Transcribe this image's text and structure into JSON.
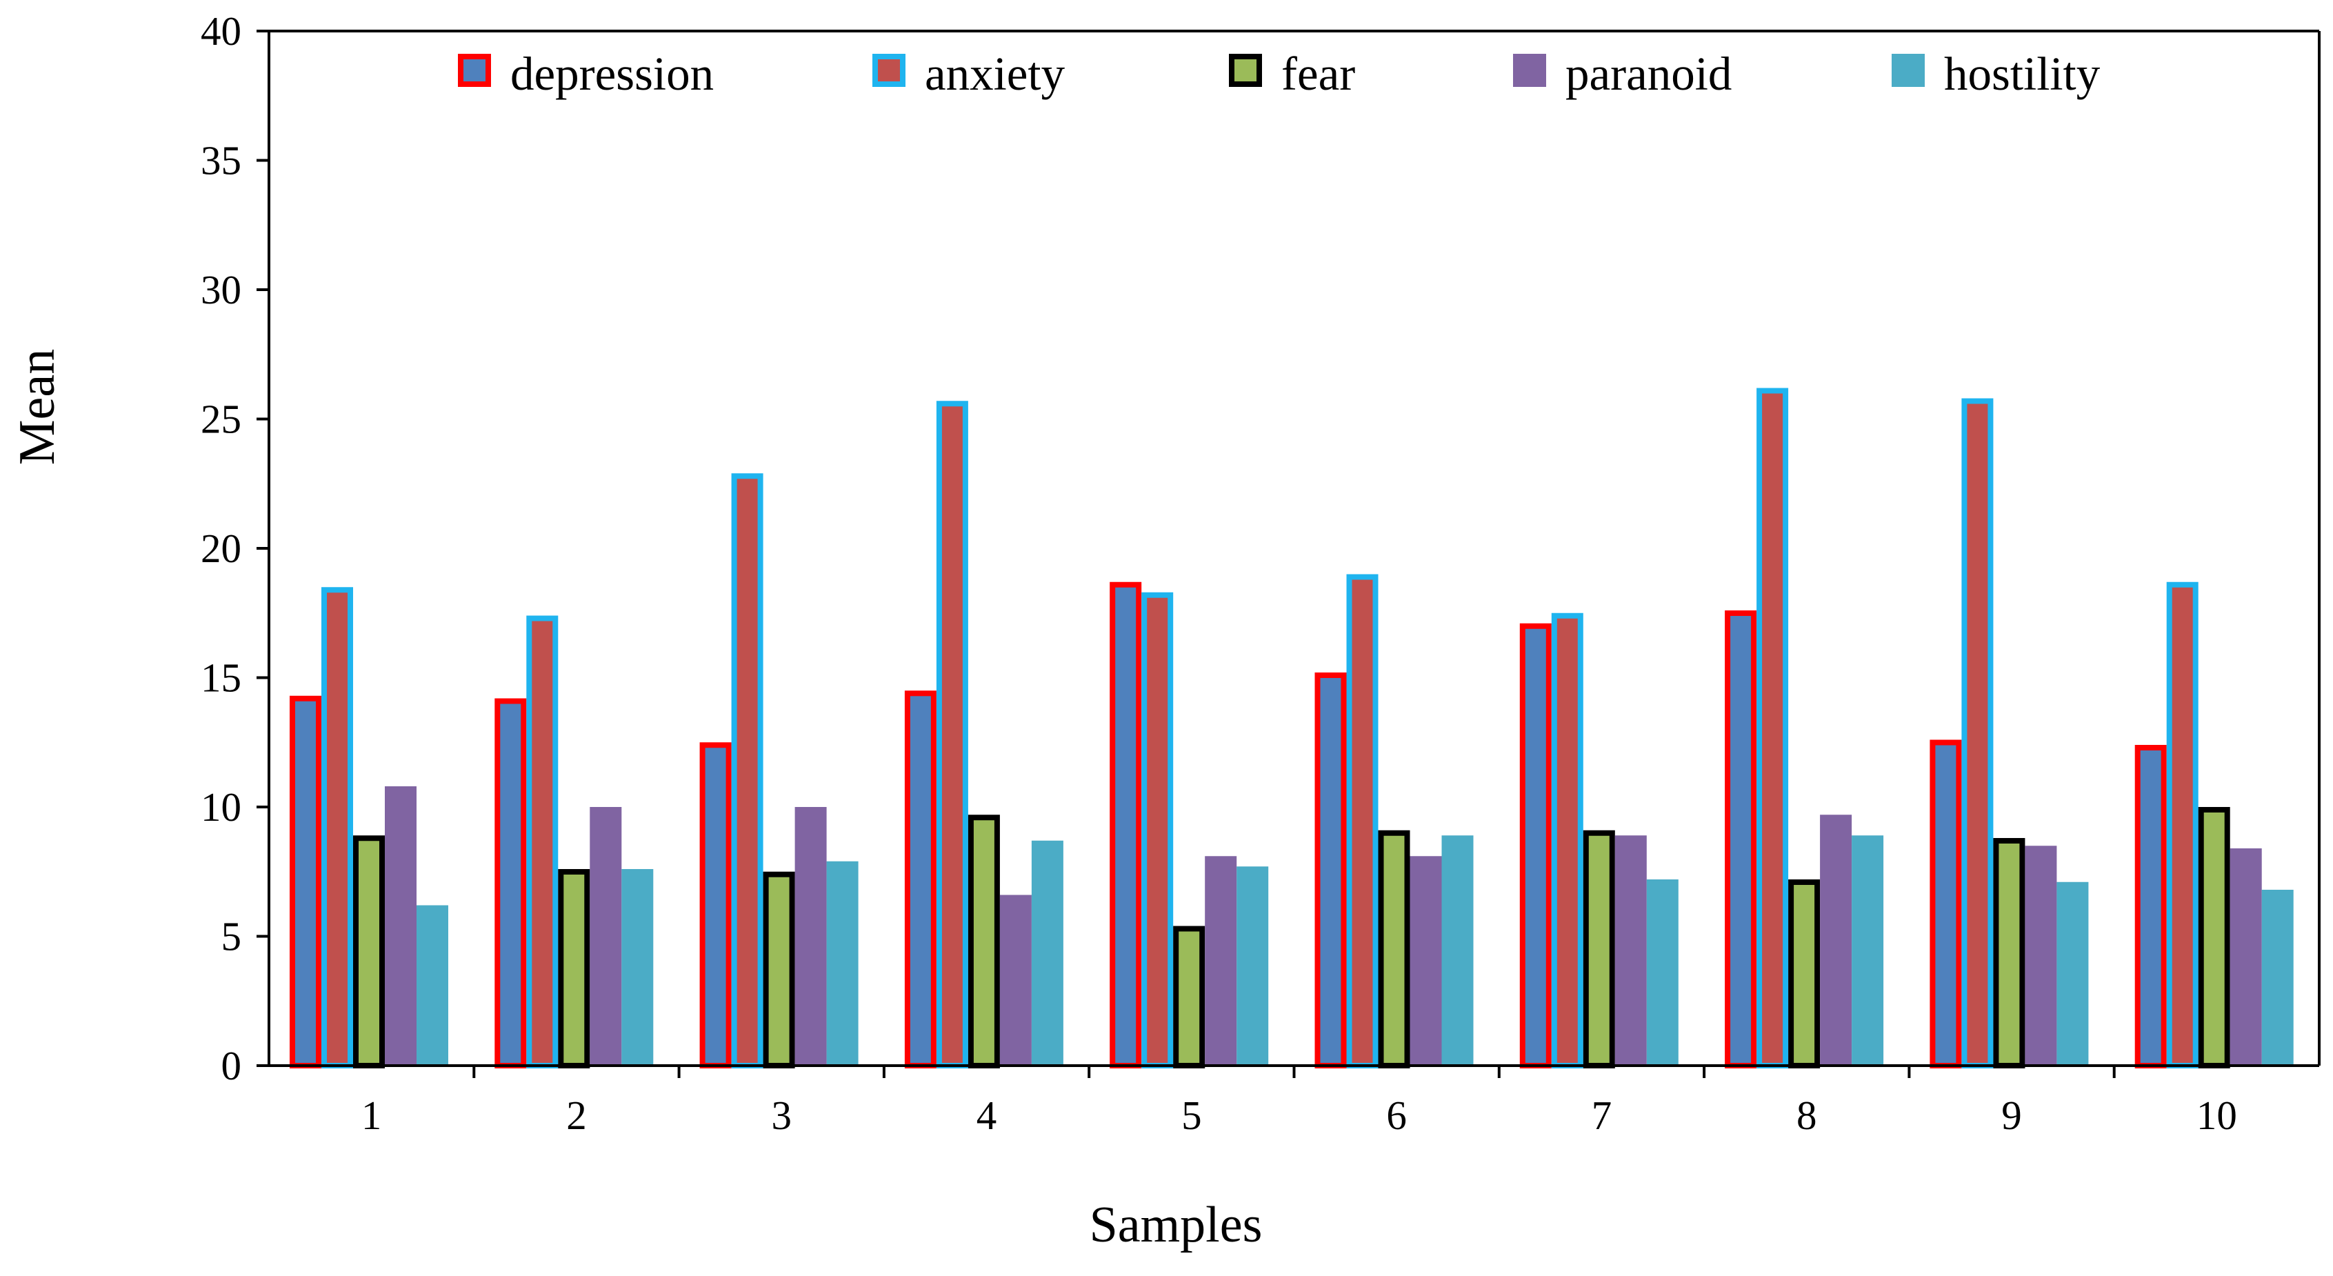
{
  "chart_data": {
    "type": "bar",
    "title": "",
    "xlabel": "Samples",
    "ylabel": "Mean",
    "ylim": [
      0,
      40
    ],
    "yticks": [
      0,
      5,
      10,
      15,
      20,
      25,
      30,
      35,
      40
    ],
    "grid": false,
    "legend_position": "top",
    "categories": [
      "1",
      "2",
      "3",
      "4",
      "5",
      "6",
      "7",
      "8",
      "9",
      "10"
    ],
    "series": [
      {
        "name": "depression",
        "fill": "#4f81bd",
        "stroke": "#ff0000",
        "values": [
          14.3,
          14.2,
          12.5,
          14.5,
          18.7,
          15.2,
          17.1,
          17.6,
          12.6,
          12.4
        ]
      },
      {
        "name": "anxiety",
        "fill": "#c0504d",
        "stroke": "#1fb4ef",
        "values": [
          18.5,
          17.4,
          22.9,
          25.7,
          18.3,
          19.0,
          17.5,
          26.2,
          25.8,
          18.7
        ]
      },
      {
        "name": "fear",
        "fill": "#9bbb59",
        "stroke": "#000000",
        "values": [
          8.9,
          7.6,
          7.5,
          9.7,
          5.4,
          9.1,
          9.1,
          7.2,
          8.8,
          10.0
        ]
      },
      {
        "name": "paranoid",
        "fill": "#8064a2",
        "stroke": "",
        "values": [
          10.8,
          10.0,
          10.0,
          6.6,
          8.1,
          8.1,
          8.9,
          9.7,
          8.5,
          8.4
        ]
      },
      {
        "name": "hostility",
        "fill": "#4bacc6",
        "stroke": "",
        "values": [
          6.2,
          7.6,
          7.9,
          8.7,
          7.7,
          8.9,
          7.2,
          8.9,
          7.1,
          6.8
        ]
      }
    ]
  }
}
